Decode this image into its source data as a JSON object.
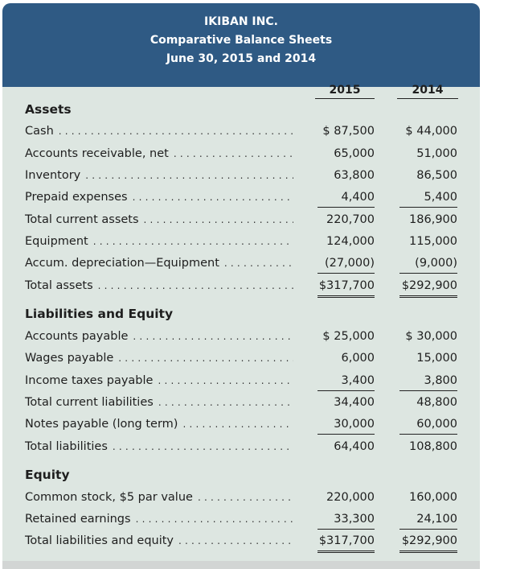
{
  "header": {
    "company": "IKIBAN INC.",
    "title": "Comparative Balance Sheets",
    "date": "June 30, 2015 and 2014"
  },
  "columns": [
    "2015",
    "2014"
  ],
  "colors": {
    "header_bg": "#2f5a84",
    "body_bg": "#dde6e1"
  },
  "rows": [
    {
      "type": "heading",
      "label": "Assets"
    },
    {
      "label": "Cash",
      "v2015": "$ 87,500",
      "v2014": "$ 44,000"
    },
    {
      "label": "Accounts receivable, net",
      "v2015": "65,000",
      "v2014": "51,000"
    },
    {
      "label": "Inventory",
      "v2015": "63,800",
      "v2014": "86,500"
    },
    {
      "label": "Prepaid expenses",
      "v2015": "4,400",
      "v2014": "5,400",
      "rule": "single"
    },
    {
      "label": "Total current assets",
      "v2015": "220,700",
      "v2014": "186,900"
    },
    {
      "label": "Equipment",
      "v2015": "124,000",
      "v2014": "115,000"
    },
    {
      "label": "Accum. depreciation—Equipment",
      "v2015": "(27,000)",
      "v2014": "(9,000)",
      "rule": "single"
    },
    {
      "label": "Total assets",
      "v2015": "$317,700",
      "v2014": "$292,900",
      "rule": "double"
    },
    {
      "type": "heading",
      "label": "Liabilities and Equity"
    },
    {
      "label": "Accounts payable",
      "v2015": "$ 25,000",
      "v2014": "$ 30,000"
    },
    {
      "label": "Wages payable",
      "v2015": "6,000",
      "v2014": "15,000"
    },
    {
      "label": "Income taxes payable",
      "v2015": "3,400",
      "v2014": "3,800",
      "rule": "single"
    },
    {
      "label": "Total current liabilities",
      "v2015": "34,400",
      "v2014": "48,800"
    },
    {
      "label": "Notes payable (long term)",
      "v2015": "30,000",
      "v2014": "60,000",
      "rule": "single"
    },
    {
      "label": "Total liabilities",
      "v2015": "64,400",
      "v2014": "108,800"
    },
    {
      "type": "heading",
      "label": "Equity"
    },
    {
      "label": "Common stock, $5 par value",
      "v2015": "220,000",
      "v2014": "160,000"
    },
    {
      "label": "Retained earnings",
      "v2015": "33,300",
      "v2014": "24,100",
      "rule": "single"
    },
    {
      "label": "Total liabilities and equity",
      "v2015": "$317,700",
      "v2014": "$292,900",
      "rule": "double"
    }
  ]
}
